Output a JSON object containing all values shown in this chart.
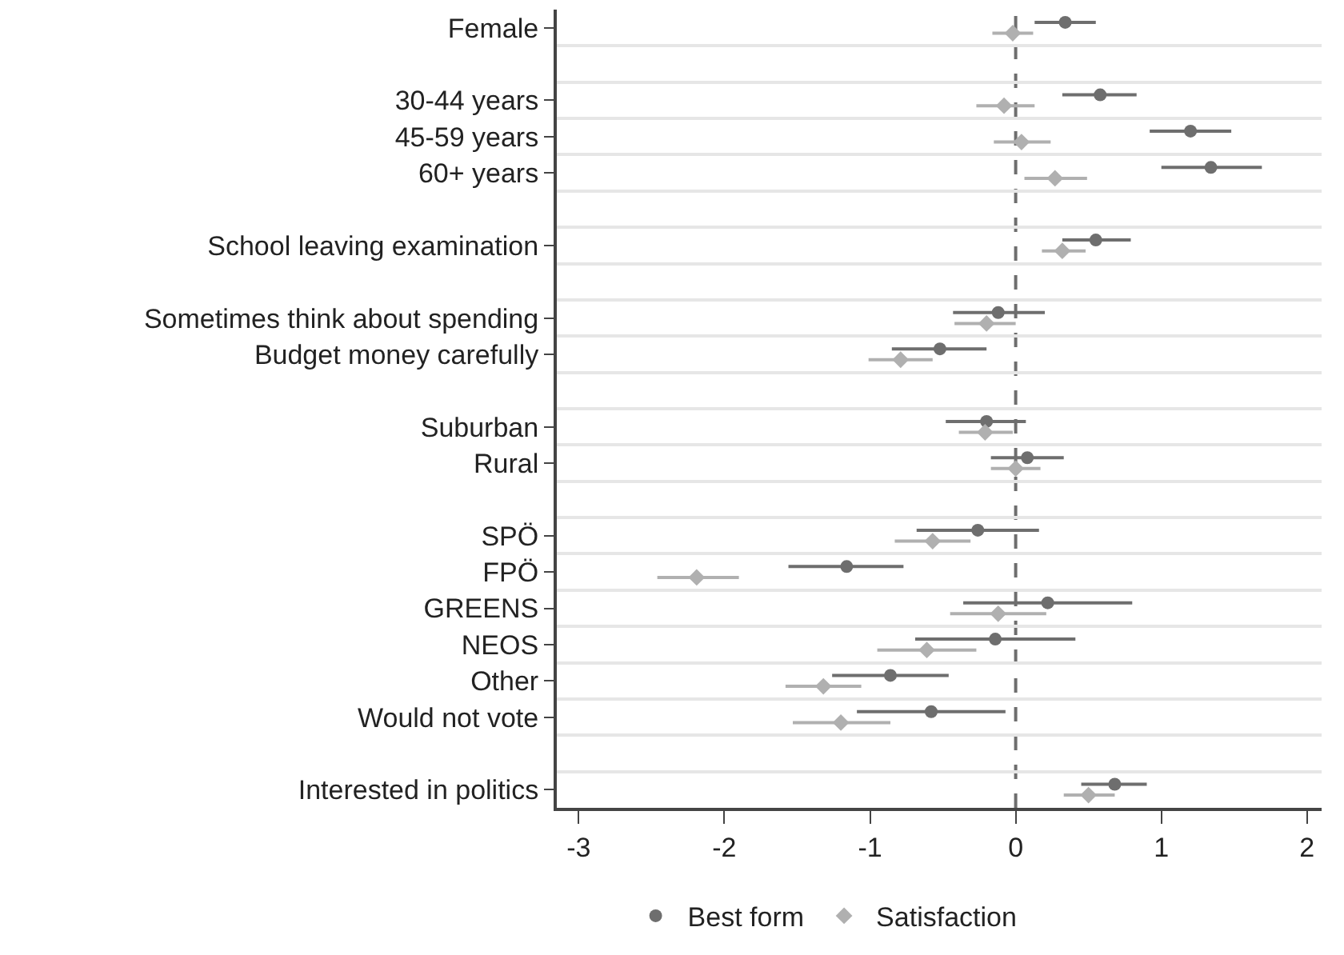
{
  "chart_data": {
    "type": "scatter",
    "orientation": "horizontal",
    "categories": [
      "Female",
      null,
      "30-44 years",
      "45-59 years",
      "60+ years",
      null,
      "School leaving examination",
      null,
      "Sometimes think about spending",
      "Budget money carefully",
      null,
      "Suburban",
      "Rural",
      null,
      "SPÖ",
      "FPÖ",
      "GREENS",
      "NEOS",
      "Other",
      "Would not vote",
      null,
      "Interested in politics"
    ],
    "series": [
      {
        "name": "Best form",
        "color": "#6e6e6e",
        "marker": "circle",
        "values": [
          0.34,
          null,
          0.58,
          1.2,
          1.34,
          null,
          0.55,
          null,
          -0.12,
          -0.52,
          null,
          -0.2,
          0.08,
          null,
          -0.26,
          -1.16,
          0.22,
          -0.14,
          -0.86,
          -0.58,
          null,
          0.68
        ],
        "errors": [
          [
            0.13,
            0.55
          ],
          null,
          [
            0.32,
            0.83
          ],
          [
            0.92,
            1.48
          ],
          [
            1.0,
            1.69
          ],
          null,
          [
            0.32,
            0.79
          ],
          null,
          [
            -0.43,
            0.2
          ],
          [
            -0.85,
            -0.2
          ],
          null,
          [
            -0.48,
            0.07
          ],
          [
            -0.17,
            0.33
          ],
          null,
          [
            -0.68,
            0.16
          ],
          [
            -1.56,
            -0.77
          ],
          [
            -0.36,
            0.8
          ],
          [
            -0.69,
            0.41
          ],
          [
            -1.26,
            -0.46
          ],
          [
            -1.09,
            -0.07
          ],
          null,
          [
            0.45,
            0.9
          ]
        ]
      },
      {
        "name": "Satisfaction",
        "color": "#b0b0b0",
        "marker": "diamond",
        "values": [
          -0.02,
          null,
          -0.08,
          0.04,
          0.27,
          null,
          0.32,
          null,
          -0.2,
          -0.79,
          null,
          -0.21,
          0.0,
          null,
          -0.57,
          -2.19,
          -0.12,
          -0.61,
          -1.32,
          -1.2,
          null,
          0.5
        ],
        "errors": [
          [
            -0.16,
            0.12
          ],
          null,
          [
            -0.27,
            0.13
          ],
          [
            -0.15,
            0.24
          ],
          [
            0.06,
            0.49
          ],
          null,
          [
            0.18,
            0.48
          ],
          null,
          [
            -0.42,
            0.0
          ],
          [
            -1.01,
            -0.57
          ],
          null,
          [
            -0.39,
            -0.02
          ],
          [
            -0.17,
            0.17
          ],
          null,
          [
            -0.83,
            -0.31
          ],
          [
            -2.46,
            -1.9
          ],
          [
            -0.45,
            0.21
          ],
          [
            -0.95,
            -0.27
          ],
          [
            -1.58,
            -1.06
          ],
          [
            -1.53,
            -0.86
          ],
          null,
          [
            0.33,
            0.68
          ]
        ]
      }
    ],
    "xlim": [
      -3.15,
      2.1
    ],
    "xticks": [
      -3,
      -2,
      -1,
      0,
      1,
      2
    ],
    "ref_lines": [
      {
        "axis": "x",
        "value": 0,
        "color": "#6e6e6e",
        "line_style": "dashed"
      }
    ],
    "grid": "y",
    "legend": "bottom"
  }
}
